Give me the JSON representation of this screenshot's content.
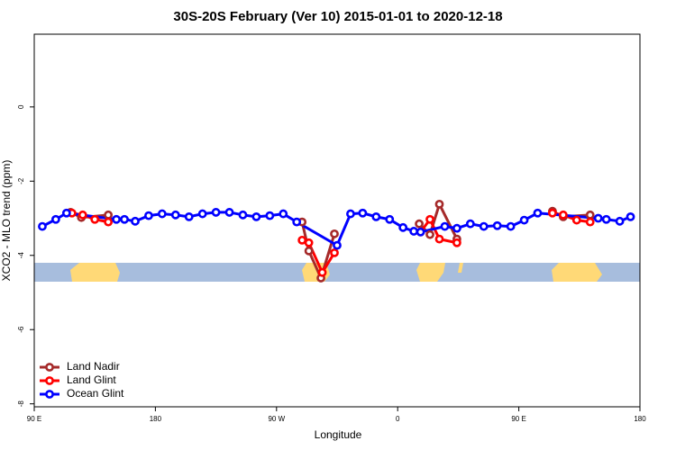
{
  "chart_data": {
    "type": "line",
    "title": "30S-20S February (Ver 10)   2015-01-01 to 2020-12-18",
    "xlabel": "Longitude",
    "ylabel": "XCO2 - MLO trend (ppm)",
    "xlim": [
      90,
      540
    ],
    "ylim": [
      -8.08,
      1.96
    ],
    "xticks": [
      {
        "value": 90,
        "label": "90 E"
      },
      180,
      {
        "value": 270,
        "label": "90 W"
      },
      {
        "value": 360,
        "label": "0"
      },
      {
        "value": 450,
        "label": "90 E"
      },
      {
        "value": 540,
        "label": "180"
      }
    ],
    "yticks": [
      0,
      -2,
      -4,
      -6,
      -8
    ],
    "legend": "bottom-left",
    "series": [
      {
        "name": "Land Nadir",
        "color": "#a52a2a",
        "x": [
          117,
          125,
          145,
          null,
          289,
          294,
          303,
          313,
          null,
          376,
          384,
          391,
          404,
          null,
          475,
          483,
          503
        ],
        "values": [
          -2.84,
          -2.98,
          -2.91,
          null,
          -3.1,
          -3.88,
          -4.61,
          -3.42,
          null,
          -3.15,
          -3.44,
          -2.62,
          -3.56,
          null,
          -2.81,
          -2.96,
          -2.91
        ]
      },
      {
        "name": "Land Glint",
        "color": "#ff0000",
        "x": [
          118,
          126,
          135,
          145,
          null,
          289,
          294,
          304,
          313,
          null,
          377,
          384,
          391,
          404,
          null,
          475,
          483,
          493,
          503
        ],
        "values": [
          -2.86,
          -2.91,
          -3.03,
          -3.1,
          null,
          -3.59,
          -3.66,
          -4.46,
          -3.93,
          null,
          -3.37,
          -3.03,
          -3.56,
          -3.66,
          null,
          -2.86,
          -2.91,
          -3.05,
          -3.1
        ]
      },
      {
        "name": "Ocean Glint",
        "color": "#0000ff",
        "x": [
          96,
          106,
          114,
          151,
          157,
          165,
          175,
          185,
          195,
          205,
          215,
          225,
          235,
          245,
          255,
          265,
          275,
          285,
          315,
          325,
          334,
          344,
          354,
          364,
          372,
          377,
          395,
          404,
          414,
          424,
          434,
          444,
          454,
          464,
          509,
          515,
          525,
          533
        ],
        "values": [
          -3.22,
          -3.03,
          -2.86,
          -3.03,
          -3.03,
          -3.08,
          -2.93,
          -2.88,
          -2.91,
          -2.96,
          -2.88,
          -2.84,
          -2.84,
          -2.91,
          -2.96,
          -2.93,
          -2.88,
          -3.1,
          -3.73,
          -2.88,
          -2.86,
          -2.96,
          -3.03,
          -3.25,
          -3.35,
          -3.37,
          -3.22,
          -3.27,
          -3.15,
          -3.22,
          -3.2,
          -3.22,
          -3.05,
          -2.86,
          -3.0,
          -3.03,
          -3.08,
          -2.96
        ]
      }
    ]
  }
}
